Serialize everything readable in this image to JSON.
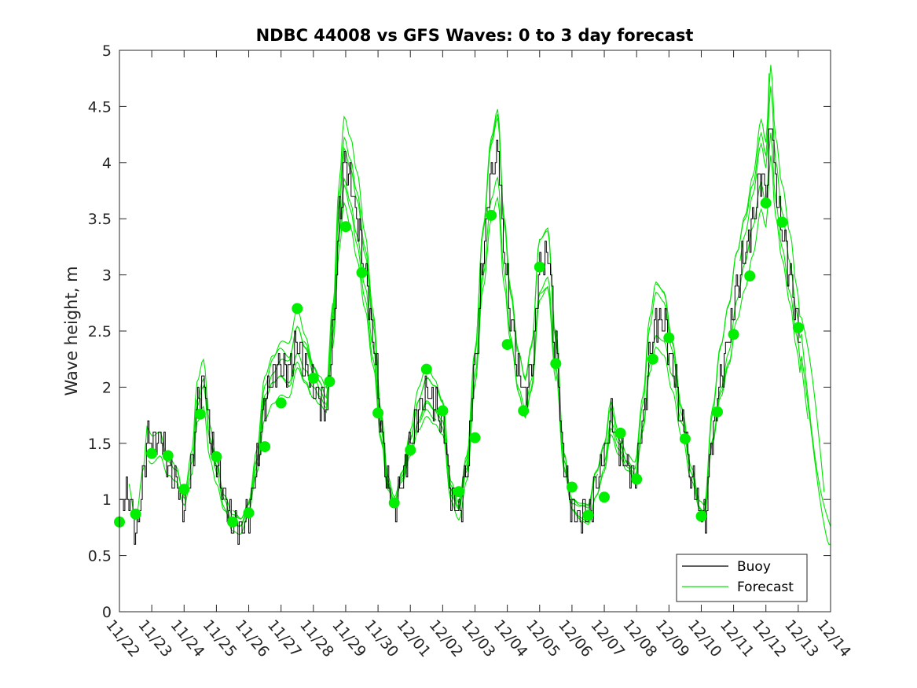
{
  "chart_data": {
    "type": "line",
    "title": "NDBC 44008 vs GFS Waves: 0 to 3 day forecast",
    "xlabel": "",
    "ylabel": "Wave height, m",
    "ylim": [
      0,
      5
    ],
    "yticks": [
      "0",
      "0.5",
      "1",
      "1.5",
      "2",
      "2.5",
      "3",
      "3.5",
      "4",
      "4.5",
      "5"
    ],
    "xlim": [
      0,
      22
    ],
    "xtick_labels": [
      "11/22",
      "11/23",
      "11/24",
      "11/25",
      "11/26",
      "11/27",
      "11/28",
      "11/29",
      "11/30",
      "12/01",
      "12/02",
      "12/03",
      "12/04",
      "12/05",
      "12/06",
      "12/07",
      "12/08",
      "12/09",
      "12/10",
      "12/11",
      "12/12",
      "12/13",
      "12/14"
    ],
    "grid": false,
    "legend": {
      "position": "bottom-right",
      "entries": [
        {
          "label": "Buoy",
          "color": "#000000"
        },
        {
          "label": "Forecast",
          "color": "#00e600"
        }
      ]
    },
    "colors": {
      "buoy": "#000000",
      "forecast": "#00e600",
      "marker": "#00ee00"
    },
    "buoy_anchors": [
      [
        0,
        0.9
      ],
      [
        0.25,
        1.05
      ],
      [
        0.5,
        0.75
      ],
      [
        0.75,
        1.2
      ],
      [
        0.85,
        1.55
      ],
      [
        1.0,
        1.5
      ],
      [
        1.25,
        1.55
      ],
      [
        1.5,
        1.3
      ],
      [
        1.75,
        1.2
      ],
      [
        2.0,
        0.95
      ],
      [
        2.25,
        1.3
      ],
      [
        2.4,
        1.85
      ],
      [
        2.6,
        2.05
      ],
      [
        2.8,
        1.55
      ],
      [
        3.0,
        1.3
      ],
      [
        3.25,
        1.0
      ],
      [
        3.5,
        0.8
      ],
      [
        3.75,
        0.75
      ],
      [
        4.0,
        0.9
      ],
      [
        4.25,
        1.3
      ],
      [
        4.5,
        1.9
      ],
      [
        4.75,
        2.1
      ],
      [
        5.0,
        2.2
      ],
      [
        5.25,
        2.15
      ],
      [
        5.5,
        2.4
      ],
      [
        5.75,
        2.2
      ],
      [
        6.0,
        2.0
      ],
      [
        6.2,
        1.9
      ],
      [
        6.4,
        1.8
      ],
      [
        6.6,
        2.5
      ],
      [
        6.8,
        3.5
      ],
      [
        6.95,
        4.0
      ],
      [
        7.15,
        3.8
      ],
      [
        7.35,
        3.5
      ],
      [
        7.6,
        3.0
      ],
      [
        7.85,
        2.4
      ],
      [
        8.1,
        1.6
      ],
      [
        8.3,
        1.1
      ],
      [
        8.5,
        0.95
      ],
      [
        8.75,
        1.2
      ],
      [
        9.0,
        1.5
      ],
      [
        9.25,
        1.8
      ],
      [
        9.5,
        1.95
      ],
      [
        9.75,
        1.85
      ],
      [
        10.0,
        1.7
      ],
      [
        10.25,
        1.05
      ],
      [
        10.5,
        0.9
      ],
      [
        10.75,
        1.3
      ],
      [
        11.0,
        2.2
      ],
      [
        11.25,
        3.2
      ],
      [
        11.5,
        3.9
      ],
      [
        11.7,
        4.1
      ],
      [
        11.9,
        3.2
      ],
      [
        12.1,
        2.6
      ],
      [
        12.35,
        2.1
      ],
      [
        12.55,
        1.9
      ],
      [
        12.75,
        2.2
      ],
      [
        13.0,
        3.1
      ],
      [
        13.25,
        3.2
      ],
      [
        13.5,
        2.3
      ],
      [
        13.75,
        1.3
      ],
      [
        14.0,
        0.9
      ],
      [
        14.25,
        0.85
      ],
      [
        14.5,
        0.85
      ],
      [
        14.75,
        1.15
      ],
      [
        15.0,
        1.4
      ],
      [
        15.2,
        1.75
      ],
      [
        15.45,
        1.5
      ],
      [
        15.7,
        1.3
      ],
      [
        15.95,
        1.2
      ],
      [
        16.2,
        1.7
      ],
      [
        16.4,
        2.3
      ],
      [
        16.6,
        2.6
      ],
      [
        16.85,
        2.55
      ],
      [
        17.1,
        2.2
      ],
      [
        17.4,
        1.7
      ],
      [
        17.7,
        1.2
      ],
      [
        17.95,
        0.9
      ],
      [
        18.1,
        0.85
      ],
      [
        18.35,
        1.6
      ],
      [
        18.6,
        2.1
      ],
      [
        18.85,
        2.45
      ],
      [
        19.1,
        2.9
      ],
      [
        19.35,
        3.2
      ],
      [
        19.6,
        3.5
      ],
      [
        19.85,
        3.9
      ],
      [
        20.0,
        3.7
      ],
      [
        20.15,
        4.4
      ],
      [
        20.3,
        3.8
      ],
      [
        20.5,
        3.4
      ],
      [
        20.75,
        3.0
      ],
      [
        20.95,
        2.6
      ],
      [
        21.1,
        2.3
      ]
    ],
    "forecast_markers": [
      [
        0.0,
        0.8
      ],
      [
        0.5,
        0.87
      ],
      [
        1.0,
        1.41
      ],
      [
        1.5,
        1.39
      ],
      [
        2.0,
        1.09
      ],
      [
        2.5,
        1.76
      ],
      [
        3.0,
        1.38
      ],
      [
        3.5,
        0.8
      ],
      [
        4.0,
        0.88
      ],
      [
        4.5,
        1.47
      ],
      [
        5.0,
        1.86
      ],
      [
        5.5,
        2.7
      ],
      [
        6.0,
        2.08
      ],
      [
        6.5,
        2.05
      ],
      [
        7.0,
        3.43
      ],
      [
        7.5,
        3.02
      ],
      [
        8.0,
        1.77
      ],
      [
        8.5,
        0.97
      ],
      [
        9.0,
        1.44
      ],
      [
        9.5,
        2.16
      ],
      [
        10.0,
        1.79
      ],
      [
        10.5,
        1.07
      ],
      [
        11.0,
        1.55
      ],
      [
        11.5,
        3.53
      ],
      [
        12.0,
        2.38
      ],
      [
        12.5,
        1.79
      ],
      [
        13.0,
        3.07
      ],
      [
        13.5,
        2.21
      ],
      [
        14.0,
        1.11
      ],
      [
        14.5,
        0.86
      ],
      [
        15.0,
        1.02
      ],
      [
        15.5,
        1.59
      ],
      [
        16.0,
        1.18
      ],
      [
        16.5,
        2.25
      ],
      [
        17.0,
        2.44
      ],
      [
        17.5,
        1.54
      ],
      [
        18.0,
        0.85
      ],
      [
        18.5,
        1.78
      ],
      [
        19.0,
        2.47
      ],
      [
        19.5,
        2.99
      ],
      [
        20.0,
        3.64
      ],
      [
        20.5,
        3.47
      ],
      [
        21.0,
        2.53
      ]
    ],
    "forecast_segments": [
      {
        "start": 0.3,
        "end": 6.6,
        "amp": 1.1,
        "ph": 0.7
      },
      {
        "start": 0.9,
        "end": 5.9,
        "amp": 0.88,
        "ph": 1.9
      },
      {
        "start": 1.6,
        "end": 8.5,
        "amp": 1.05,
        "ph": 2.6
      },
      {
        "start": 2.3,
        "end": 9.8,
        "amp": 0.94,
        "ph": 0.2
      },
      {
        "start": 3.5,
        "end": 10.4,
        "amp": 1.12,
        "ph": 3.3
      },
      {
        "start": 4.4,
        "end": 11.3,
        "amp": 0.97,
        "ph": 1.1
      },
      {
        "start": 5.7,
        "end": 12.3,
        "amp": 1.08,
        "ph": 2.2
      },
      {
        "start": 6.6,
        "end": 13.5,
        "amp": 0.9,
        "ph": 0.5
      },
      {
        "start": 8.0,
        "end": 14.8,
        "amp": 1.1,
        "ph": 1.6
      },
      {
        "start": 9.3,
        "end": 16.2,
        "amp": 0.92,
        "ph": 2.9
      },
      {
        "start": 10.5,
        "end": 17.6,
        "amp": 1.09,
        "ph": 0.9
      },
      {
        "start": 12.1,
        "end": 19.0,
        "amp": 0.9,
        "ph": 2.4
      },
      {
        "start": 13.5,
        "end": 20.1,
        "amp": 1.14,
        "ph": 1.3
      },
      {
        "start": 15.0,
        "end": 21.3,
        "amp": 0.96,
        "ph": 3.1
      },
      {
        "start": 16.6,
        "end": 21.8,
        "amp": 1.12,
        "ph": 0.3
      },
      {
        "start": 18.3,
        "end": 22.0,
        "amp": 0.9,
        "ph": 1.8
      },
      {
        "start": 19.2,
        "end": 22.0,
        "amp": 1.06,
        "ph": 2.7
      }
    ]
  }
}
